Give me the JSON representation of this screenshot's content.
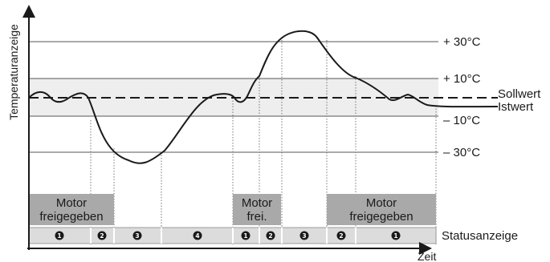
{
  "axes": {
    "y_title": "Temperaturanzeige",
    "x_title": "Zeit"
  },
  "scale_labels": [
    "+ 30°C",
    "+ 10°C",
    "– 10°C",
    "– 30°C"
  ],
  "line_labels": {
    "sollwert": "Sollwert",
    "istwert": "Istwert"
  },
  "status_label": "Statusanzeige",
  "motor_boxes": [
    {
      "lines": [
        "Motor",
        "freigegeben"
      ]
    },
    {
      "lines": [
        "Motor",
        "frei."
      ]
    },
    {
      "lines": [
        "Motor",
        "freigegeben"
      ]
    }
  ],
  "status_cells": [
    "1",
    "2",
    "3",
    "4",
    "1",
    "2",
    "3",
    "2",
    "1"
  ],
  "colors": {
    "curve": "#1a1a1a",
    "band": "#eeeeee",
    "motor_box": "#a9a9a9",
    "status_bar": "#dcdcdc",
    "status_bubble": "#1a1a1a",
    "gridline": "#555555"
  }
}
